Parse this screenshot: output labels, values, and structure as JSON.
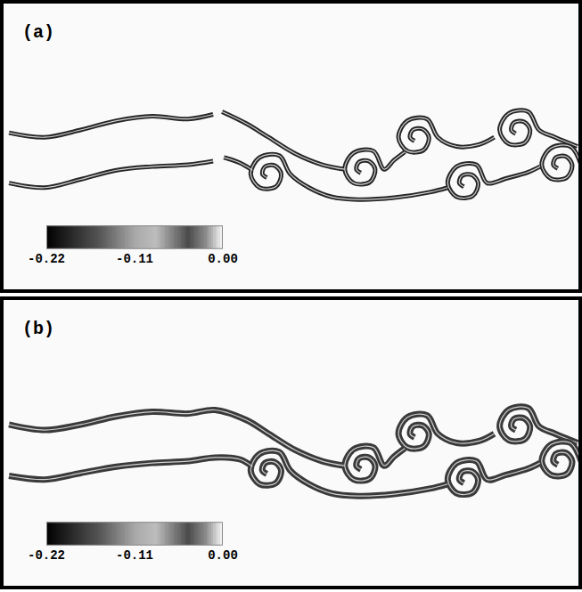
{
  "chart_data": [
    {
      "type": "line",
      "title": "(a)",
      "xlim": [
        0,
        650
      ],
      "ylim": [
        320,
        0
      ],
      "tick_labels": false,
      "grid": false,
      "colorbar": {
        "range": [
          -0.22,
          0
        ],
        "ticks": [
          -0.22,
          -0.11,
          {
            "value": 0,
            "label": "0.00"
          }
        ]
      },
      "series": [
        {
          "color": "#262626",
          "x": [
            10,
            50,
            90,
            130,
            170,
            210,
            238,
            null,
            248,
            275,
            300,
            330,
            360,
            385,
            null,
            403,
            398,
            401,
            412,
            419,
            413,
            395,
            385,
            395,
            417,
            429,
            440,
            452,
            null,
            463,
            458,
            461,
            472,
            479,
            473,
            455,
            445,
            455,
            477,
            489,
            510,
            535,
            552,
            null,
            576,
            571,
            574,
            585,
            592,
            586,
            568,
            558,
            568,
            590,
            602,
            620,
            645
          ],
          "values": [
            145,
            150,
            142,
            132,
            127,
            130,
            125,
            null,
            122,
            135,
            150,
            168,
            180,
            185,
            null,
            189,
            185,
            177,
            176,
            185,
            199,
            200,
            185,
            167,
            165,
            185,
            175,
            166,
            null,
            154,
            150,
            142,
            141,
            150,
            164,
            165,
            150,
            132,
            130,
            150,
            160,
            158,
            150,
            null,
            146,
            142,
            134,
            133,
            142,
            156,
            157,
            142,
            124,
            122,
            142,
            150,
            160
          ]
        },
        {
          "color": "#262626",
          "x": [
            10,
            50,
            90,
            130,
            170,
            210,
            238,
            null,
            250,
            268,
            282,
            null,
            298,
            293,
            296,
            307,
            314,
            308,
            290,
            280,
            290,
            312,
            324,
            345,
            370,
            400,
            440,
            480,
            500,
            null,
            518,
            513,
            516,
            527,
            534,
            528,
            510,
            500,
            510,
            532,
            544,
            565,
            590,
            603,
            null,
            623,
            618,
            621,
            632,
            639,
            633,
            615,
            605,
            615,
            637,
            649
          ],
          "values": [
            200,
            205,
            196,
            186,
            182,
            180,
            176,
            null,
            172,
            178,
            186,
            null,
            194,
            190,
            182,
            181,
            190,
            204,
            205,
            190,
            172,
            170,
            190,
            205,
            215,
            218,
            216,
            210,
            205,
            null,
            204,
            200,
            192,
            191,
            200,
            214,
            215,
            200,
            182,
            180,
            200,
            195,
            188,
            182,
            null,
            184,
            180,
            172,
            171,
            180,
            194,
            195,
            180,
            162,
            160,
            180
          ]
        }
      ]
    },
    {
      "type": "line",
      "title": "(b)",
      "xlim": [
        0,
        650
      ],
      "ylim": [
        320,
        0
      ],
      "tick_labels": false,
      "grid": false,
      "colorbar": {
        "range": [
          -0.22,
          0
        ],
        "ticks": [
          -0.22,
          -0.11,
          {
            "value": 0,
            "label": "0.00"
          }
        ]
      },
      "series": [
        {
          "color": "#3a3a3a",
          "x": [
            10,
            50,
            90,
            130,
            170,
            210,
            240,
            275,
            300,
            330,
            360,
            385,
            null,
            403,
            398,
            401,
            412,
            419,
            413,
            395,
            385,
            395,
            417,
            429,
            440,
            452,
            null,
            463,
            458,
            461,
            472,
            479,
            473,
            455,
            445,
            455,
            477,
            489,
            510,
            535,
            552,
            null,
            576,
            571,
            574,
            585,
            592,
            586,
            568,
            558,
            568,
            590,
            602,
            620,
            645
          ],
          "values": [
            140,
            146,
            140,
            131,
            126,
            128,
            124,
            135,
            150,
            168,
            180,
            185,
            null,
            189,
            185,
            177,
            176,
            185,
            199,
            200,
            185,
            167,
            165,
            185,
            175,
            166,
            null,
            154,
            150,
            142,
            141,
            150,
            164,
            165,
            150,
            132,
            130,
            150,
            160,
            158,
            150,
            null,
            146,
            142,
            134,
            133,
            142,
            156,
            157,
            142,
            124,
            122,
            142,
            150,
            160
          ]
        },
        {
          "color": "#3a3a3a",
          "x": [
            10,
            50,
            90,
            130,
            170,
            210,
            240,
            268,
            282,
            null,
            298,
            293,
            296,
            307,
            314,
            308,
            290,
            280,
            290,
            312,
            324,
            345,
            370,
            400,
            440,
            480,
            500,
            null,
            518,
            513,
            516,
            527,
            534,
            528,
            510,
            500,
            510,
            532,
            544,
            565,
            590,
            603,
            null,
            623,
            618,
            621,
            632,
            639,
            633,
            615,
            605,
            615,
            637,
            649
          ],
          "values": [
            196,
            200,
            193,
            186,
            182,
            180,
            176,
            178,
            186,
            null,
            194,
            190,
            182,
            181,
            190,
            204,
            205,
            190,
            172,
            170,
            190,
            205,
            215,
            218,
            216,
            210,
            205,
            null,
            204,
            200,
            192,
            191,
            200,
            214,
            215,
            200,
            182,
            180,
            200,
            195,
            188,
            182,
            null,
            184,
            180,
            172,
            171,
            180,
            194,
            195,
            180,
            162,
            160,
            180
          ]
        }
      ]
    }
  ]
}
